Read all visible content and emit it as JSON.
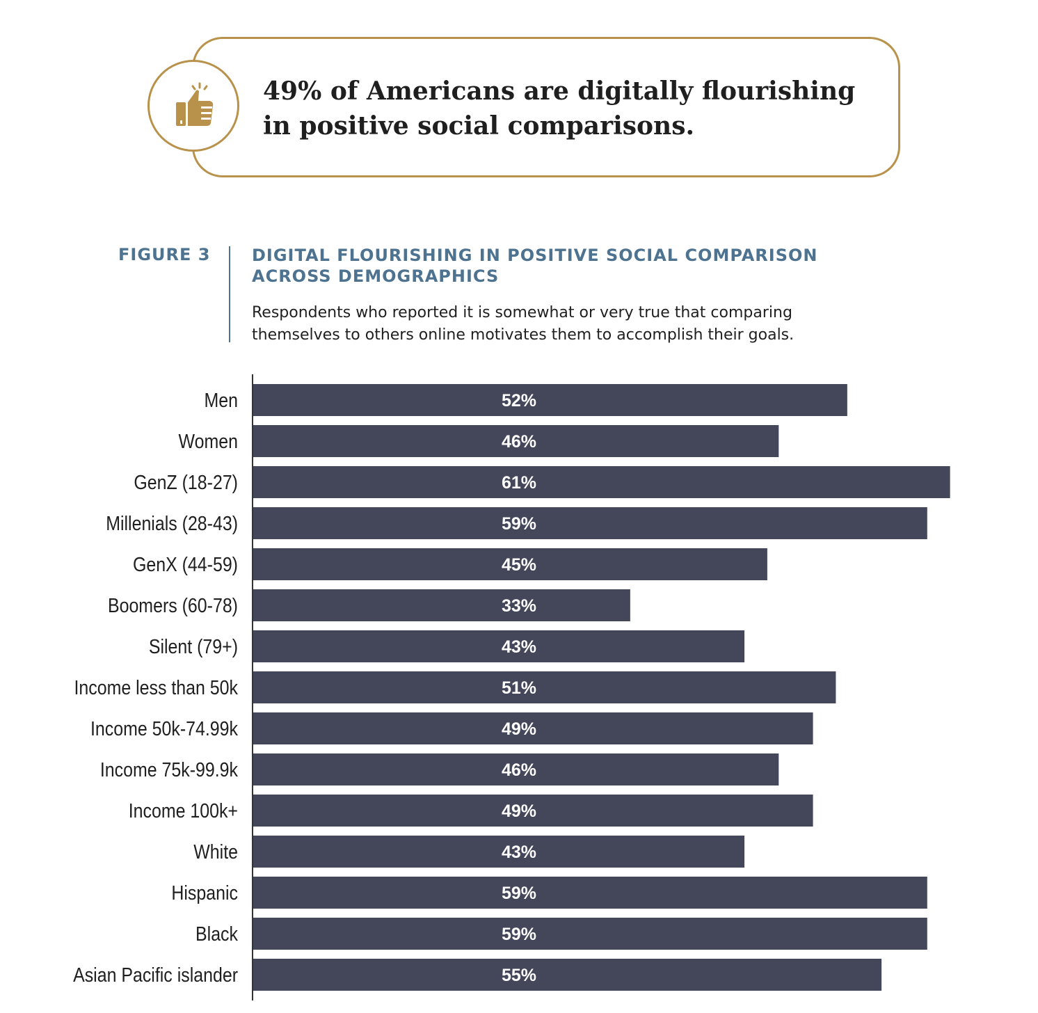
{
  "callout": {
    "headline_line1": "49% of Americans are digitally flourishing",
    "headline_line2": "in positive social comparisons.",
    "icon": "thumbs-up-icon"
  },
  "figure": {
    "label": "FIGURE 3",
    "title_line1": "DIGITAL FLOURISHING IN POSITIVE SOCIAL COMPARISON",
    "title_line2": "ACROSS DEMOGRAPHICS",
    "subtitle_line1": "Respondents who reported it is somewhat or very true that comparing",
    "subtitle_line2": "themselves to others online motivates them to accomplish their goals."
  },
  "colors": {
    "bar": "#44475a",
    "accent_gold": "#b8924a",
    "figure_blue": "#4d7390",
    "text": "#1f1f1f"
  },
  "chart_data": {
    "type": "bar",
    "orientation": "horizontal",
    "categories": [
      "Men",
      "Women",
      "GenZ (18-27)",
      "Millenials (28-43)",
      "GenX (44-59)",
      "Boomers (60-78)",
      "Silent (79+)",
      "Income less than 50k",
      "Income 50k-74.99k",
      "Income  75k-99.9k",
      "Income 100k+",
      "White",
      "Hispanic",
      "Black",
      "Asian Pacific islander"
    ],
    "values": [
      52,
      46,
      61,
      59,
      45,
      33,
      43,
      51,
      49,
      46,
      49,
      43,
      59,
      59,
      55
    ],
    "value_labels": [
      "52%",
      "46%",
      "61%",
      "59%",
      "45%",
      "33%",
      "43%",
      "51%",
      "49%",
      "46%",
      "49%",
      "43%",
      "59%",
      "59%",
      "55%"
    ],
    "unit": "%",
    "grid": false,
    "legend": "none"
  }
}
